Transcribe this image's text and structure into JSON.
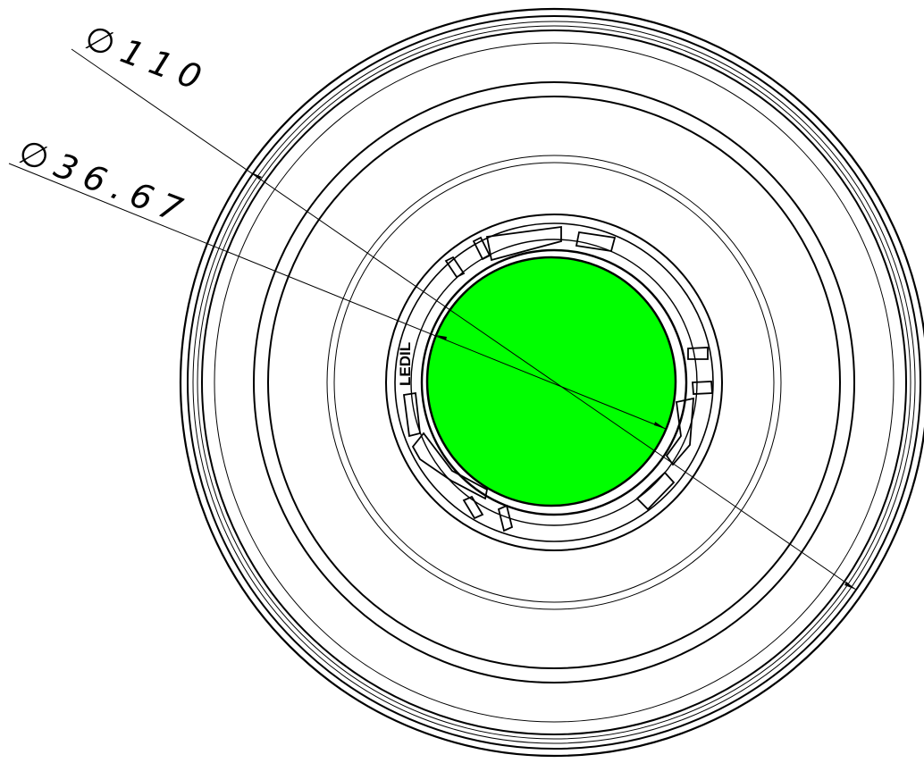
{
  "dimensions": {
    "outer_diameter": "∅110",
    "inner_diameter": "∅36.67"
  },
  "logo": "LEDIL",
  "colors": {
    "lens_fill": "#00FF00",
    "line": "#000000",
    "background": "#FFFFFF"
  }
}
